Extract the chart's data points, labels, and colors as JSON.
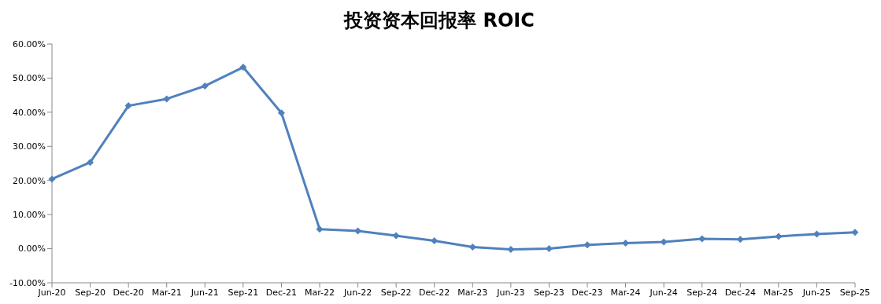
{
  "chart_data": {
    "type": "line",
    "title": "投资资本回报率 ROIC",
    "categories": [
      "Jun-20",
      "Sep-20",
      "Dec-20",
      "Mar-21",
      "Jun-21",
      "Sep-21",
      "Dec-21",
      "Mar-22",
      "Jun-22",
      "Sep-22",
      "Dec-22",
      "Mar-23",
      "Jun-23",
      "Sep-23",
      "Dec-23",
      "Mar-24",
      "Jun-24",
      "Sep-24",
      "Dec-24",
      "Mar-25",
      "Jun-25",
      "Sep-25"
    ],
    "series": [
      {
        "color": "#4f81bd",
        "values": [
          20.4,
          25.3,
          41.9,
          43.9,
          47.7,
          53.2,
          39.8,
          5.7,
          5.2,
          3.8,
          2.3,
          0.5,
          -0.2,
          0,
          1.1,
          1.6,
          2.0,
          2.9,
          2.7,
          3.6,
          4.3,
          4.8
        ]
      }
    ],
    "ylim": [
      -10,
      60
    ],
    "yticks": [
      {
        "value": -10,
        "label": "-10.00%"
      },
      {
        "value": 0,
        "label": "0.00%"
      },
      {
        "value": 10,
        "label": "10.00%"
      },
      {
        "value": 20,
        "label": "20.00%"
      },
      {
        "value": 30,
        "label": "30.00%"
      },
      {
        "value": 40,
        "label": "40.00%"
      },
      {
        "value": 50,
        "label": "50.00%"
      },
      {
        "value": 60,
        "label": "60.00%"
      }
    ],
    "grid": false,
    "legend": false,
    "marker": "diamond",
    "line_style": "solid"
  }
}
